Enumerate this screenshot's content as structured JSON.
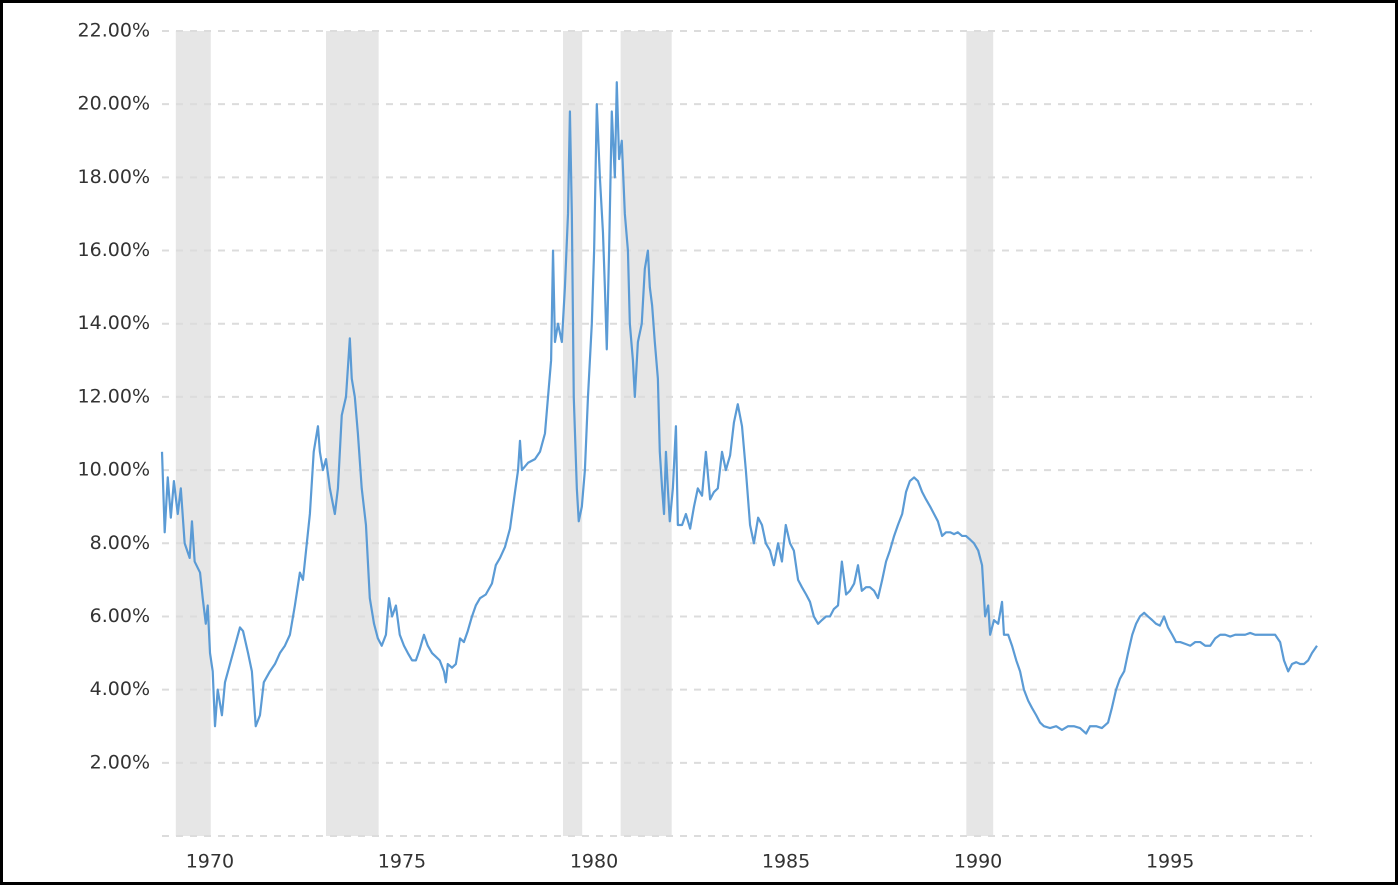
{
  "chart_data": {
    "type": "line",
    "color": "#5b9bd5",
    "recession_color": "#e6e6e6",
    "grid": true,
    "xlim": [
      1969.56,
      1999.63
    ],
    "ylim": [
      0,
      22
    ],
    "xticks": [
      1970,
      1975,
      1980,
      1985,
      1990,
      1995
    ],
    "yticks": [
      {
        "value": 2,
        "label": "2.00%"
      },
      {
        "value": 4,
        "label": "4.00%"
      },
      {
        "value": 6,
        "label": "6.00%"
      },
      {
        "value": 8,
        "label": "8.00%"
      },
      {
        "value": 10,
        "label": "10.00%"
      },
      {
        "value": 12,
        "label": "12.00%"
      },
      {
        "value": 14,
        "label": "14.00%"
      },
      {
        "value": 16,
        "label": "16.00%"
      },
      {
        "value": 18,
        "label": "18.00%"
      },
      {
        "value": 20,
        "label": "20.00%"
      },
      {
        "value": 22,
        "label": "22.00%"
      }
    ],
    "recessions": [
      [
        1969.92,
        1970.83
      ],
      [
        1973.83,
        1975.2
      ],
      [
        1980.0,
        1980.5
      ],
      [
        1981.5,
        1982.83
      ],
      [
        1990.5,
        1991.2
      ]
    ],
    "x": [
      1969.56,
      1969.63,
      1969.71,
      1969.79,
      1969.87,
      1969.97,
      1970.05,
      1970.15,
      1970.28,
      1970.34,
      1970.41,
      1970.55,
      1970.62,
      1970.7,
      1970.75,
      1970.81,
      1970.88,
      1970.94,
      1971.01,
      1971.12,
      1971.2,
      1971.33,
      1971.46,
      1971.59,
      1971.67,
      1971.8,
      1971.9,
      1972.0,
      1972.11,
      1972.21,
      1972.37,
      1972.5,
      1972.63,
      1972.76,
      1972.89,
      1973.02,
      1973.15,
      1973.23,
      1973.31,
      1973.41,
      1973.51,
      1973.62,
      1973.67,
      1973.75,
      1973.83,
      1973.93,
      1974.06,
      1974.14,
      1974.24,
      1974.35,
      1974.45,
      1974.5,
      1974.58,
      1974.66,
      1974.76,
      1974.87,
      1974.97,
      1975.08,
      1975.18,
      1975.28,
      1975.39,
      1975.47,
      1975.55,
      1975.65,
      1975.75,
      1975.86,
      1975.96,
      1976.07,
      1976.17,
      1976.27,
      1976.38,
      1976.48,
      1976.59,
      1976.69,
      1976.79,
      1976.9,
      1976.95,
      1977.0,
      1977.11,
      1977.21,
      1977.32,
      1977.42,
      1977.52,
      1977.63,
      1977.73,
      1977.84,
      1977.99,
      1978.15,
      1978.25,
      1978.36,
      1978.49,
      1978.62,
      1978.75,
      1978.83,
      1978.88,
      1978.93,
      1979.09,
      1979.27,
      1979.4,
      1979.53,
      1979.61,
      1979.69,
      1979.74,
      1979.79,
      1979.87,
      1979.97,
      1980.05,
      1980.13,
      1980.18,
      1980.23,
      1980.28,
      1980.36,
      1980.41,
      1980.49,
      1980.57,
      1980.65,
      1980.75,
      1980.81,
      1980.88,
      1980.96,
      1981.04,
      1981.09,
      1981.14,
      1981.2,
      1981.27,
      1981.35,
      1981.4,
      1981.46,
      1981.53,
      1981.61,
      1981.69,
      1981.74,
      1981.82,
      1981.87,
      1981.95,
      1982.05,
      1982.13,
      1982.21,
      1982.26,
      1982.32,
      1982.39,
      1982.47,
      1982.52,
      1982.58,
      1982.63,
      1982.68,
      1982.73,
      1982.78,
      1982.86,
      1982.94,
      1982.99,
      1983.1,
      1983.2,
      1983.31,
      1983.41,
      1983.51,
      1983.62,
      1983.72,
      1983.83,
      1983.93,
      1984.03,
      1984.14,
      1984.24,
      1984.35,
      1984.45,
      1984.55,
      1984.66,
      1984.76,
      1984.87,
      1984.97,
      1985.08,
      1985.18,
      1985.28,
      1985.39,
      1985.49,
      1985.6,
      1985.7,
      1985.8,
      1985.91,
      1986.01,
      1986.12,
      1986.22,
      1986.33,
      1986.43,
      1986.53,
      1986.64,
      1986.74,
      1986.85,
      1986.95,
      1987.05,
      1987.16,
      1987.26,
      1987.37,
      1987.47,
      1987.58,
      1987.68,
      1987.78,
      1987.89,
      1987.99,
      1988.1,
      1988.2,
      1988.31,
      1988.41,
      1988.51,
      1988.62,
      1988.72,
      1988.83,
      1988.93,
      1989.03,
      1989.14,
      1989.24,
      1989.35,
      1989.45,
      1989.56,
      1989.66,
      1989.76,
      1989.87,
      1989.97,
      1990.08,
      1990.18,
      1990.28,
      1990.39,
      1990.49,
      1990.6,
      1990.7,
      1990.81,
      1990.91,
      1990.99,
      1991.07,
      1991.12,
      1991.22,
      1991.33,
      1991.43,
      1991.48,
      1991.59,
      1991.69,
      1991.8,
      1991.9,
      1992.0,
      1992.11,
      1992.21,
      1992.32,
      1992.42,
      1992.52,
      1992.68,
      1992.84,
      1992.99,
      1993.15,
      1993.3,
      1993.46,
      1993.62,
      1993.72,
      1993.88,
      1994.03,
      1994.19,
      1994.29,
      1994.4,
      1994.5,
      1994.61,
      1994.71,
      1994.82,
      1994.92,
      1995.02,
      1995.13,
      1995.23,
      1995.34,
      1995.44,
      1995.54,
      1995.65,
      1995.75,
      1995.86,
      1995.96,
      1996.07,
      1996.2,
      1996.33,
      1996.46,
      1996.59,
      1996.72,
      1996.85,
      1996.98,
      1997.11,
      1997.24,
      1997.37,
      1997.5,
      1997.63,
      1997.76,
      1997.89,
      1998.02,
      1998.15,
      1998.28,
      1998.41,
      1998.54,
      1998.67,
      1998.77,
      1998.88,
      1998.98,
      1999.09,
      1999.19,
      1999.29,
      1999.4,
      1999.5,
      1999.63
    ],
    "values": [
      10.5,
      8.3,
      9.8,
      8.7,
      9.7,
      8.8,
      9.5,
      8.0,
      7.6,
      8.6,
      7.5,
      7.2,
      6.5,
      5.8,
      6.3,
      5.0,
      4.5,
      3.0,
      4.0,
      3.3,
      4.2,
      4.7,
      5.2,
      5.7,
      5.6,
      5.0,
      4.5,
      3.0,
      3.3,
      4.2,
      4.5,
      4.7,
      5.0,
      5.2,
      5.5,
      6.3,
      7.2,
      7.0,
      7.8,
      8.8,
      10.5,
      11.2,
      10.5,
      10.0,
      10.3,
      9.5,
      8.8,
      9.5,
      11.5,
      12.0,
      13.6,
      12.5,
      12.0,
      11.0,
      9.5,
      8.5,
      6.5,
      5.8,
      5.4,
      5.2,
      5.5,
      6.5,
      6.0,
      6.3,
      5.5,
      5.2,
      5.0,
      4.8,
      4.8,
      5.1,
      5.5,
      5.2,
      5.0,
      4.9,
      4.8,
      4.5,
      4.2,
      4.7,
      4.6,
      4.7,
      5.4,
      5.3,
      5.6,
      6.0,
      6.3,
      6.5,
      6.6,
      6.9,
      7.4,
      7.6,
      7.9,
      8.4,
      9.4,
      10.0,
      10.8,
      10.0,
      10.2,
      10.3,
      10.5,
      11.0,
      12.0,
      13.0,
      16.0,
      13.5,
      14.0,
      13.5,
      15.0,
      17.0,
      19.8,
      17.0,
      12.0,
      9.5,
      8.6,
      9.0,
      10.0,
      12.0,
      14.0,
      16.0,
      20.0,
      18.0,
      16.5,
      15.0,
      13.3,
      16.0,
      19.8,
      18.0,
      20.6,
      18.5,
      19.0,
      17.0,
      16.0,
      14.0,
      13.0,
      12.0,
      13.5,
      14.0,
      15.5,
      16.0,
      15.0,
      14.5,
      13.5,
      12.5,
      10.5,
      9.5,
      8.8,
      10.5,
      9.5,
      8.6,
      9.5,
      11.2,
      8.5,
      8.5,
      8.8,
      8.4,
      9.0,
      9.5,
      9.3,
      10.5,
      9.2,
      9.4,
      9.5,
      10.5,
      10.0,
      10.4,
      11.3,
      11.8,
      11.2,
      10.0,
      8.5,
      8.0,
      8.7,
      8.5,
      8.0,
      7.8,
      7.4,
      8.0,
      7.5,
      8.5,
      8.0,
      7.8,
      7.0,
      6.8,
      6.6,
      6.4,
      6.0,
      5.8,
      5.9,
      6.0,
      6.0,
      6.2,
      6.3,
      7.5,
      6.6,
      6.7,
      6.9,
      7.4,
      6.7,
      6.8,
      6.8,
      6.7,
      6.5,
      7.0,
      7.5,
      7.8,
      8.2,
      8.5,
      8.8,
      9.4,
      9.7,
      9.8,
      9.7,
      9.4,
      9.2,
      9.0,
      8.8,
      8.6,
      8.2,
      8.3,
      8.3,
      8.25,
      8.3,
      8.2,
      8.2,
      8.1,
      8.0,
      7.8,
      7.4,
      6.0,
      6.3,
      5.5,
      5.9,
      5.8,
      6.4,
      5.5,
      5.5,
      5.2,
      4.8,
      4.5,
      4.0,
      3.7,
      3.5,
      3.3,
      3.1,
      3.0,
      2.95,
      3.0,
      2.9,
      3.0,
      3.0,
      2.95,
      2.8,
      3.0,
      3.0,
      2.95,
      3.1,
      3.5,
      4.0,
      4.3,
      4.5,
      5.0,
      5.5,
      5.8,
      6.0,
      6.1,
      6.0,
      5.9,
      5.8,
      5.75,
      6.0,
      5.7,
      5.5,
      5.3,
      5.3,
      5.25,
      5.2,
      5.3,
      5.3,
      5.2,
      5.2,
      5.4,
      5.5,
      5.5,
      5.45,
      5.5,
      5.5,
      5.5,
      5.55,
      5.5,
      5.5,
      5.5,
      5.5,
      5.5,
      5.3,
      4.8,
      4.5,
      4.7,
      4.75,
      4.7,
      4.7,
      4.8,
      5.0,
      5.2
    ]
  }
}
